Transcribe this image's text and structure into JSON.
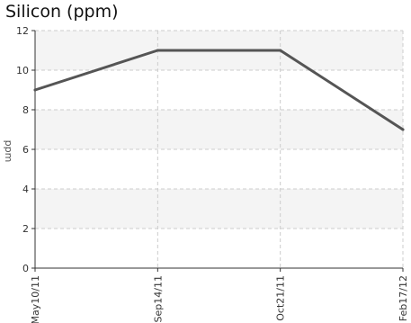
{
  "chart_data": {
    "type": "line",
    "title": "Silicon (ppm)",
    "ylabel": "ppm",
    "xlabel": "",
    "categories": [
      "May10/11",
      "Sep14/11",
      "Oct21/11",
      "Feb17/12"
    ],
    "series": [
      {
        "values": [
          9,
          11,
          11,
          7
        ]
      }
    ],
    "yticks": [
      0,
      2,
      4,
      6,
      8,
      10,
      12
    ],
    "ylim": [
      0,
      12
    ],
    "grid": true,
    "legend": "none",
    "colors": {
      "line": "#555555",
      "band": "#f4f4f4",
      "grid": "#cccccc",
      "axis": "#333333"
    }
  }
}
